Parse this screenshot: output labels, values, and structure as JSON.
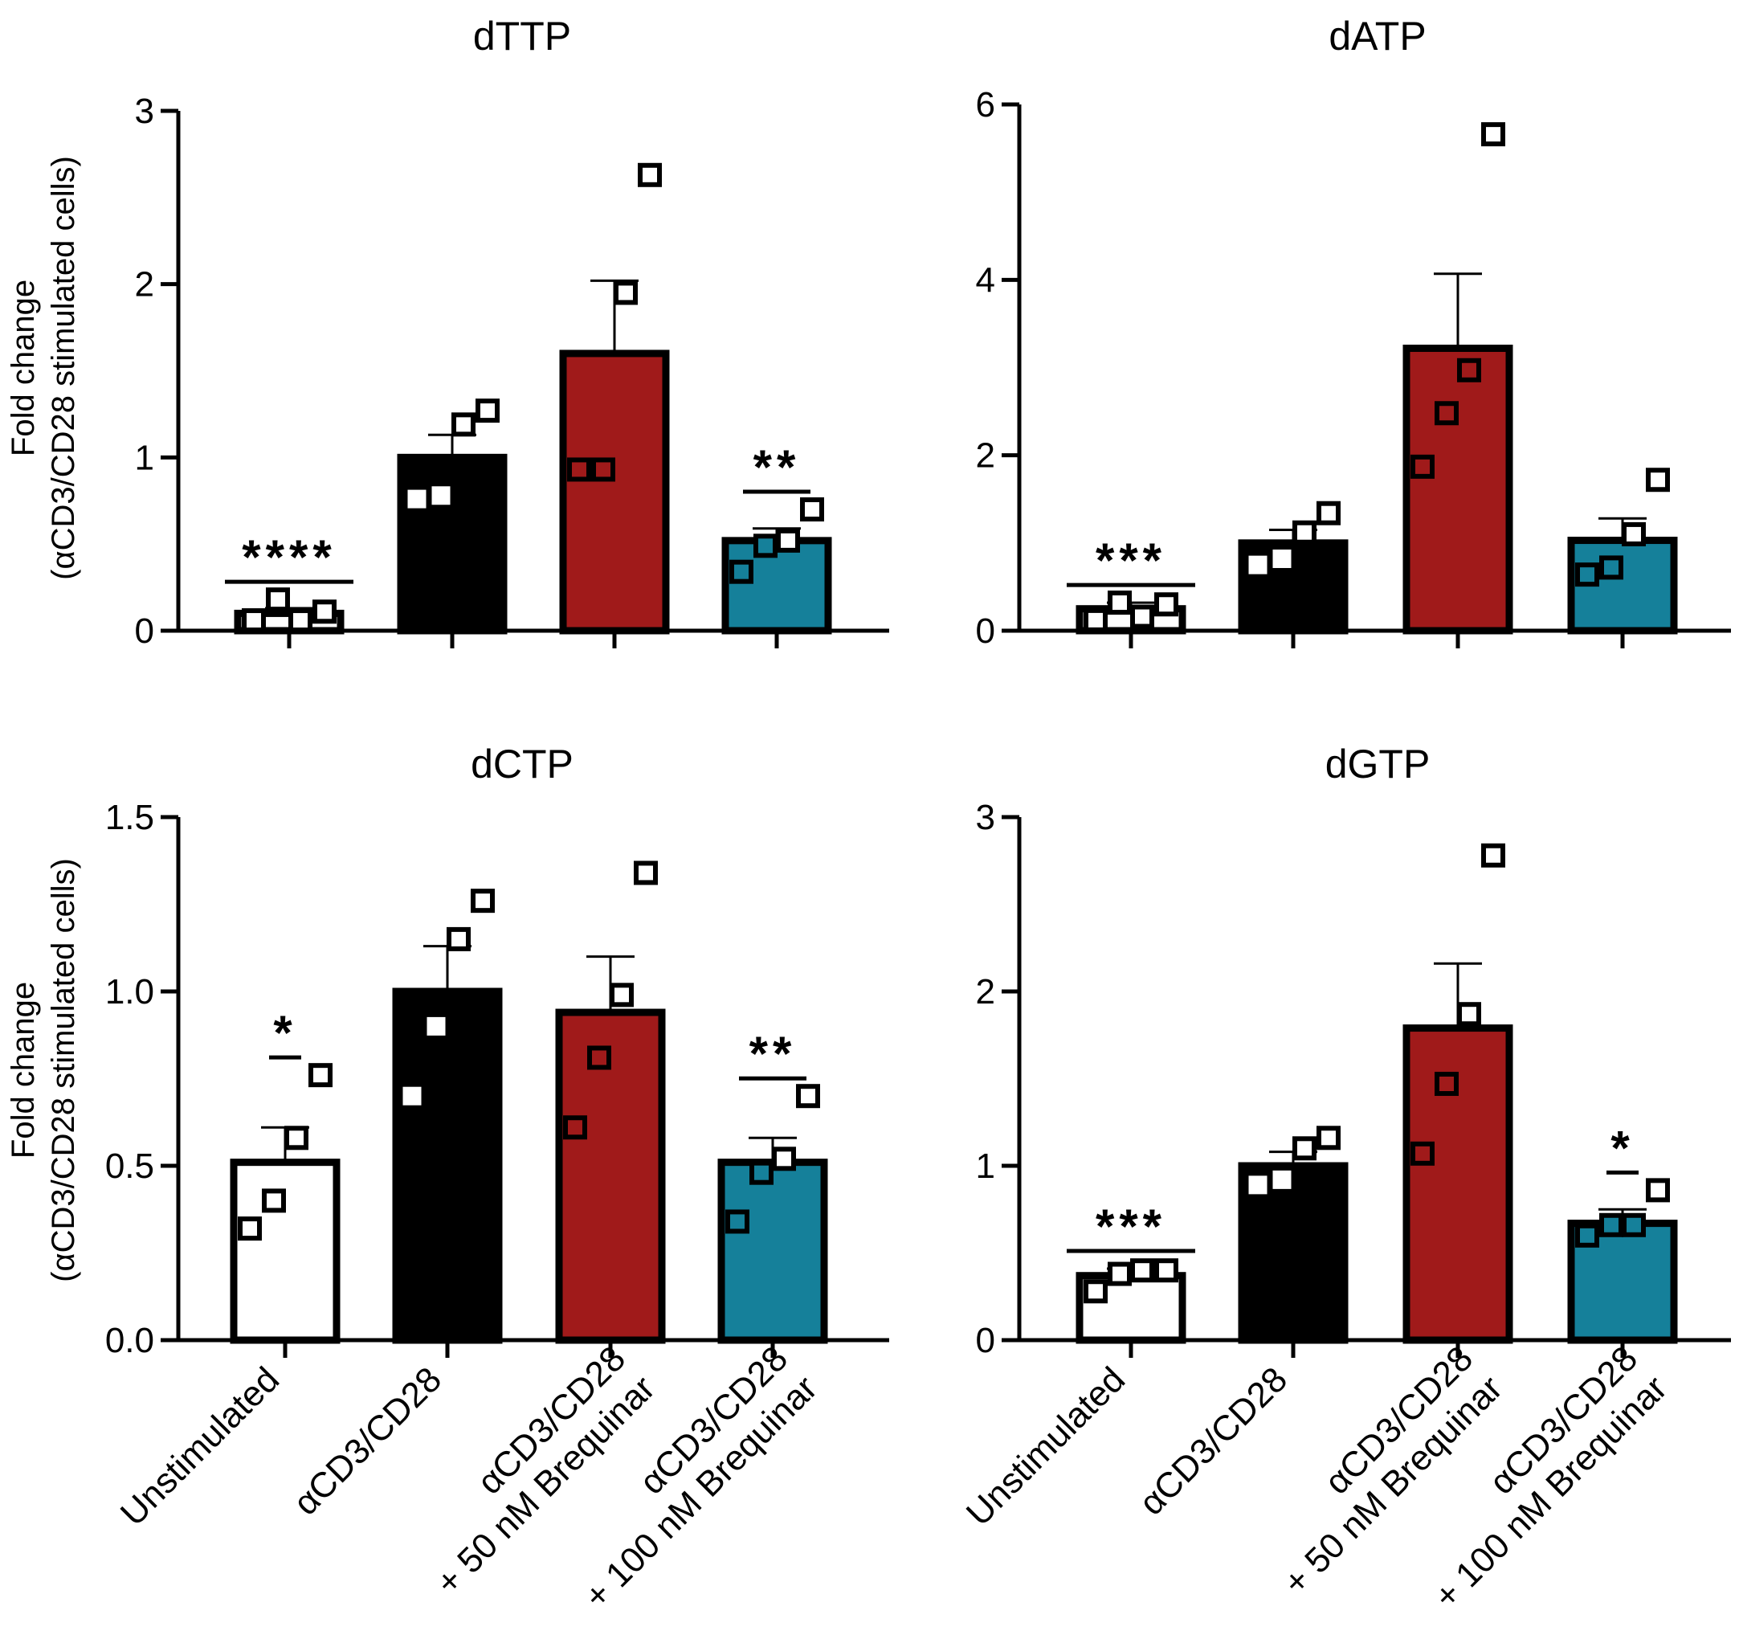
{
  "figure": {
    "ylabel_line1": "Fold change",
    "ylabel_line2": "(αCD3/CD28 stimulated cells)"
  },
  "colors": {
    "unstimulated": "#ffffff",
    "stimulated": "#000000",
    "brequinar_50": "#a01a1a",
    "brequinar_100": "#15809a",
    "outline": "#000000"
  },
  "chart_data": [
    {
      "type": "bar",
      "title": "dTTP",
      "xlabel": "",
      "ylabel": "Fold change (αCD3/CD28 stimulated cells)",
      "ylim": [
        0,
        3
      ],
      "yticks": [
        "0",
        "1",
        "2",
        "3"
      ],
      "categories": [
        [
          "Unstimulated"
        ],
        [
          "αCD3/CD28"
        ],
        [
          "αCD3/CD28",
          "+ 50 nM Brequinar"
        ],
        [
          "αCD3/CD28",
          "+ 100 nM Brequinar"
        ]
      ],
      "values": [
        0.1,
        1.0,
        1.6,
        0.52
      ],
      "errors": [
        0.03,
        0.13,
        0.42,
        0.07
      ],
      "points": [
        [
          0.06,
          0.18,
          0.06,
          0.11
        ],
        [
          0.76,
          0.78,
          1.19,
          1.27
        ],
        [
          0.93,
          0.93,
          1.95,
          2.63
        ],
        [
          0.34,
          0.49,
          0.52,
          0.7
        ]
      ],
      "significance": [
        "****",
        "",
        "",
        "**"
      ]
    },
    {
      "type": "bar",
      "title": "dATP",
      "xlabel": "",
      "ylabel": "",
      "ylim": [
        0,
        6
      ],
      "yticks": [
        "0",
        "2",
        "4",
        "6"
      ],
      "categories": [
        [
          "Unstimulated"
        ],
        [
          "αCD3/CD28"
        ],
        [
          "αCD3/CD28",
          "+ 50 nM Brequinar"
        ],
        [
          "αCD3/CD28",
          "+ 100 nM Brequinar"
        ]
      ],
      "values": [
        0.25,
        1.0,
        3.22,
        1.03
      ],
      "errors": [
        0.07,
        0.15,
        0.85,
        0.25
      ],
      "points": [
        [
          0.12,
          0.32,
          0.16,
          0.3
        ],
        [
          0.75,
          0.82,
          1.12,
          1.34
        ],
        [
          1.87,
          2.48,
          2.97,
          5.66
        ],
        [
          0.64,
          0.72,
          1.1,
          1.72
        ]
      ],
      "significance": [
        "***",
        "",
        "",
        ""
      ]
    },
    {
      "type": "bar",
      "title": "dCTP",
      "xlabel": "",
      "ylabel": "Fold change (αCD3/CD28 stimulated cells)",
      "ylim": [
        0,
        1.5
      ],
      "yticks": [
        "0.0",
        "0.5",
        "1.0",
        "1.5"
      ],
      "categories": [
        [
          "Unstimulated"
        ],
        [
          "αCD3/CD28"
        ],
        [
          "αCD3/CD28",
          "+ 50 nM Brequinar"
        ],
        [
          "αCD3/CD28",
          "+ 100 nM Brequinar"
        ]
      ],
      "values": [
        0.51,
        1.0,
        0.94,
        0.51
      ],
      "errors": [
        0.1,
        0.13,
        0.16,
        0.07
      ],
      "points": [
        [
          0.32,
          0.4,
          0.58,
          0.76
        ],
        [
          0.7,
          0.9,
          1.15,
          1.26
        ],
        [
          0.61,
          0.81,
          0.99,
          1.34
        ],
        [
          0.34,
          0.48,
          0.52,
          0.7
        ]
      ],
      "significance": [
        "*",
        "",
        "",
        "**"
      ]
    },
    {
      "type": "bar",
      "title": "dGTP",
      "xlabel": "",
      "ylabel": "",
      "ylim": [
        0,
        3
      ],
      "yticks": [
        "0",
        "1",
        "2",
        "3"
      ],
      "categories": [
        [
          "Unstimulated"
        ],
        [
          "αCD3/CD28"
        ],
        [
          "αCD3/CD28",
          "+ 50 nM Brequinar"
        ],
        [
          "αCD3/CD28",
          "+ 100 nM Brequinar"
        ]
      ],
      "values": [
        0.37,
        1.0,
        1.79,
        0.67
      ],
      "errors": [
        0.04,
        0.08,
        0.37,
        0.08
      ],
      "points": [
        [
          0.28,
          0.38,
          0.4,
          0.4
        ],
        [
          0.89,
          0.92,
          1.1,
          1.16
        ],
        [
          1.07,
          1.47,
          1.87,
          2.78
        ],
        [
          0.6,
          0.66,
          0.66,
          0.86
        ]
      ],
      "significance": [
        "***",
        "",
        "",
        "*"
      ]
    }
  ]
}
